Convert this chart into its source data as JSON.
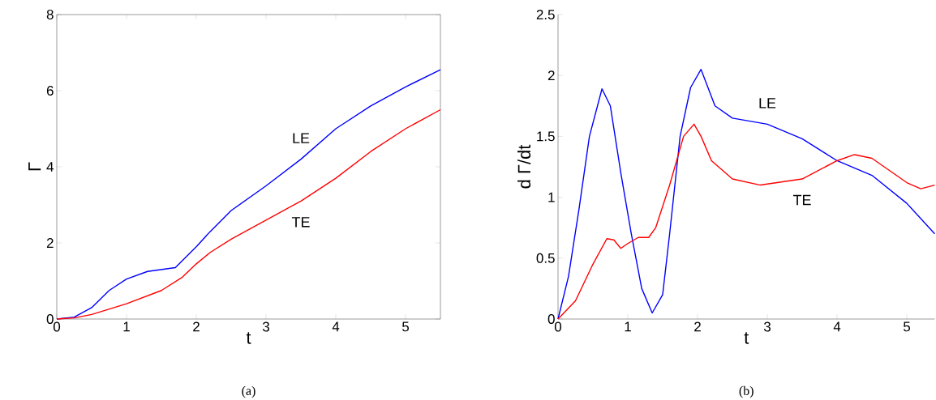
{
  "chart_data": [
    {
      "type": "line",
      "xlabel": "t",
      "ylabel": "Γ",
      "xlim": [
        0,
        5.5
      ],
      "ylim": [
        0,
        8
      ],
      "xticks": [
        0,
        1,
        2,
        3,
        4,
        5
      ],
      "yticks": [
        0,
        2,
        4,
        6,
        8
      ],
      "grid": false,
      "marker": "none",
      "line_style": "solid",
      "series": [
        {
          "name": "LE",
          "color": "#0000ff",
          "x": [
            0,
            0.25,
            0.5,
            0.75,
            1,
            1.3,
            1.7,
            2,
            2.2,
            2.5,
            3,
            3.5,
            4,
            4.5,
            5,
            5.5
          ],
          "values": [
            0,
            0.05,
            0.3,
            0.75,
            1.05,
            1.25,
            1.35,
            1.9,
            2.3,
            2.85,
            3.5,
            4.2,
            5.0,
            5.6,
            6.1,
            6.55
          ]
        },
        {
          "name": "TE",
          "color": "#ff0000",
          "x": [
            0,
            0.25,
            0.5,
            1,
            1.5,
            1.8,
            2,
            2.2,
            2.5,
            3,
            3.5,
            4,
            4.5,
            5,
            5.5
          ],
          "values": [
            0,
            0.03,
            0.12,
            0.4,
            0.75,
            1.1,
            1.45,
            1.75,
            2.1,
            2.6,
            3.1,
            3.7,
            4.4,
            5.0,
            5.5
          ]
        }
      ],
      "annotations": [
        "(a)"
      ]
    },
    {
      "type": "line",
      "xlabel": "t",
      "ylabel": "d Γ/dt",
      "xlim": [
        0,
        5.4
      ],
      "ylim": [
        0,
        2.5
      ],
      "xticks": [
        0,
        1,
        2,
        3,
        4,
        5
      ],
      "yticks": [
        0,
        0.5,
        1,
        1.5,
        2,
        2.5
      ],
      "grid": false,
      "marker": "none",
      "line_style": "solid",
      "series": [
        {
          "name": "LE",
          "color": "#0000ff",
          "x": [
            0,
            0.15,
            0.3,
            0.45,
            0.63,
            0.75,
            0.9,
            1.05,
            1.2,
            1.35,
            1.5,
            1.6,
            1.75,
            1.9,
            2.05,
            2.15,
            2.25,
            2.5,
            3,
            3.5,
            4,
            4.5,
            5,
            5.4
          ],
          "values": [
            0,
            0.35,
            0.9,
            1.5,
            1.89,
            1.75,
            1.2,
            0.7,
            0.25,
            0.05,
            0.2,
            0.7,
            1.5,
            1.9,
            2.05,
            1.9,
            1.75,
            1.65,
            1.6,
            1.48,
            1.3,
            1.18,
            0.95,
            0.7
          ]
        },
        {
          "name": "TE",
          "color": "#ff0000",
          "x": [
            0,
            0.25,
            0.5,
            0.7,
            0.8,
            0.9,
            1.0,
            1.15,
            1.3,
            1.4,
            1.6,
            1.8,
            1.95,
            2.05,
            2.2,
            2.5,
            2.9,
            3.5,
            4,
            4.25,
            4.5,
            5,
            5.2,
            5.4
          ],
          "values": [
            0,
            0.15,
            0.45,
            0.66,
            0.65,
            0.58,
            0.62,
            0.67,
            0.67,
            0.75,
            1.1,
            1.5,
            1.6,
            1.5,
            1.3,
            1.15,
            1.1,
            1.15,
            1.3,
            1.35,
            1.32,
            1.12,
            1.07,
            1.1
          ]
        }
      ],
      "annotations": [
        "(b)"
      ]
    }
  ]
}
